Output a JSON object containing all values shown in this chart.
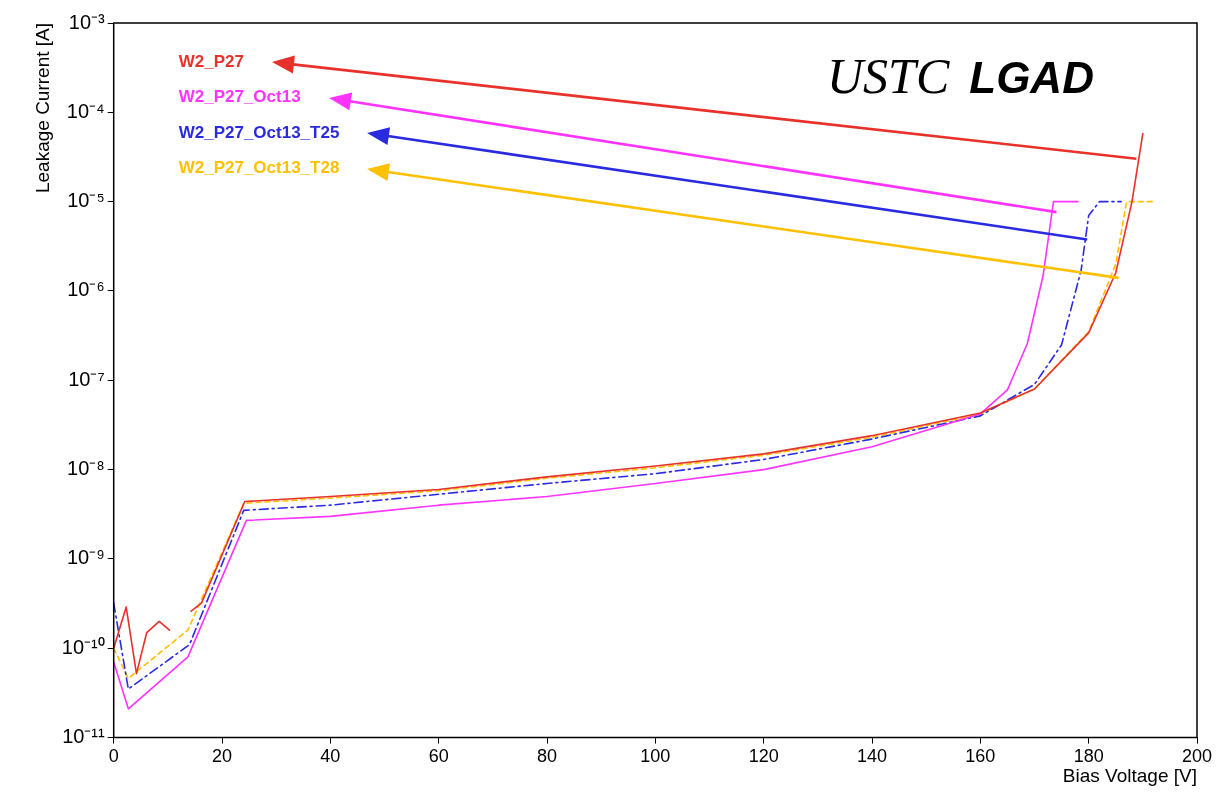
{
  "chart_data": {
    "type": "line",
    "xlabel": "Bias Voltage [V]",
    "ylabel": "Leakage Current [A]",
    "annotations": [
      "USTC",
      "LGAD"
    ],
    "xlim": [
      0,
      200
    ],
    "xticks": [
      0,
      20,
      40,
      60,
      80,
      100,
      120,
      140,
      160,
      180,
      200
    ],
    "ylim": [
      1e-11,
      0.001
    ],
    "yticks": [
      {
        "value": 1e-11,
        "label": "10⁻¹¹"
      },
      {
        "value": 1e-10,
        "label": "10⁻¹⁰"
      },
      {
        "value": 1e-09,
        "label": "10⁻⁹"
      },
      {
        "value": 1e-08,
        "label": "10⁻⁸"
      },
      {
        "value": 1e-07,
        "label": "10⁻⁷"
      },
      {
        "value": 1e-06,
        "label": "10⁻⁶"
      },
      {
        "value": 1e-05,
        "label": "10⁻⁵"
      },
      {
        "value": 0.0001,
        "label": "10⁻⁴"
      },
      {
        "value": 0.001,
        "label": "10⁻³"
      }
    ],
    "log": "y",
    "grid": false,
    "legend": "top left",
    "marker": "none",
    "series": [
      {
        "name": "W2_P27",
        "color": "#e8312a",
        "line_style": "solid",
        "x": [
          0,
          2.3,
          4.2,
          6.1,
          8.4,
          10.3,
          12,
          14.3,
          16.2,
          24.2,
          40,
          60,
          80,
          100,
          120,
          140,
          160,
          170,
          180,
          185,
          188,
          190
        ],
        "values": [
          1e-10,
          2.9e-10,
          5.2e-11,
          1.5e-10,
          2e-10,
          1.6e-10,
          null,
          2.6e-10,
          3.2e-10,
          4.4e-09,
          5e-09,
          6e-09,
          8.3e-09,
          1.1e-08,
          1.5e-08,
          2.4e-08,
          4.3e-08,
          8e-08,
          3.4e-07,
          1.6e-06,
          1e-05,
          5.8e-05
        ]
      },
      {
        "name": "W2_P27_Oct13",
        "color": "#ff33ff",
        "line_style": "solid",
        "x": [
          0,
          2.7,
          13.7,
          24.5,
          40,
          60,
          80,
          100,
          120,
          140,
          160,
          165,
          168.7,
          171.6,
          173.5,
          178
        ],
        "values": [
          7e-11,
          2.1e-11,
          8e-11,
          2.7e-09,
          3e-09,
          4e-09,
          5e-09,
          7e-09,
          1e-08,
          1.8e-08,
          4.2e-08,
          7.8e-08,
          2.6e-07,
          1.5e-06,
          1e-05,
          1e-05
        ]
      },
      {
        "name": "W2_P27_Oct13_T25",
        "color": "#2a2ae0",
        "line_style": "dashed",
        "x": [
          0,
          2.7,
          14,
          24,
          40,
          60,
          80,
          100,
          120,
          140,
          160,
          170,
          175,
          178.6,
          180,
          182,
          186
        ],
        "values": [
          3.2e-10,
          3.5e-11,
          1.1e-10,
          3.5e-09,
          4e-09,
          5.3e-09,
          7e-09,
          9e-09,
          1.3e-08,
          2.2e-08,
          4e-08,
          9e-08,
          2.5e-07,
          1.7e-06,
          7e-06,
          1e-05,
          1e-05
        ]
      },
      {
        "name": "W2_P27_Oct13_T28",
        "color": "#ffc000",
        "line_style": "dotted",
        "x": [
          0,
          2.7,
          13.7,
          24,
          40,
          60,
          80,
          100,
          120,
          140,
          160,
          170,
          180,
          185,
          187,
          192
        ],
        "values": [
          1e-10,
          4.6e-11,
          1.6e-10,
          4.2e-09,
          4.8e-09,
          5.8e-09,
          8e-09,
          1.05e-08,
          1.45e-08,
          2.3e-08,
          4.2e-08,
          8e-08,
          3.5e-07,
          2e-06,
          1e-05,
          1e-05
        ]
      }
    ]
  }
}
